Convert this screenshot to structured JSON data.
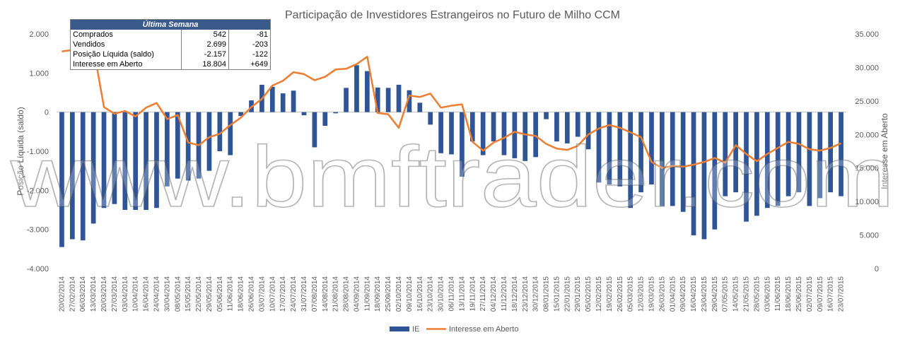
{
  "chart_data": {
    "type": "bar",
    "title": "Participação de Investidores Estrangeiros no Futuro de Milho CCM",
    "ylabel": "Posição Líquida (saldo)",
    "y2label": "Interesse em Aberto",
    "ylim": [
      -4000,
      2000
    ],
    "y2lim": [
      0,
      35000
    ],
    "y_ticks": [
      "2.000",
      "1.000",
      "0",
      "-1.000",
      "-2.000",
      "-3.000",
      "-4.000"
    ],
    "y2_ticks": [
      "35.000",
      "30.000",
      "25.000",
      "20.000",
      "15.000",
      "10.000",
      "5.000",
      "0"
    ],
    "categories": [
      "20/02/2014",
      "27/02/2014",
      "06/03/2014",
      "13/03/2014",
      "20/03/2014",
      "27/03/2014",
      "03/04/2014",
      "10/04/2014",
      "16/04/2014",
      "24/04/2014",
      "30/04/2014",
      "08/05/2014",
      "15/05/2014",
      "22/05/2014",
      "29/05/2014",
      "05/06/2014",
      "11/06/2014",
      "18/06/2014",
      "26/06/2014",
      "03/07/2014",
      "10/07/2014",
      "17/07/2014",
      "24/07/2014",
      "31/07/2014",
      "07/08/2014",
      "14/08/2014",
      "21/08/2014",
      "28/08/2014",
      "04/09/2014",
      "11/09/2014",
      "18/09/2014",
      "25/09/2014",
      "02/10/2014",
      "09/10/2014",
      "16/10/2014",
      "23/10/2014",
      "30/10/2014",
      "06/11/2014",
      "13/11/2014",
      "19/11/2014",
      "27/11/2014",
      "04/12/2014",
      "11/12/2014",
      "18/12/2014",
      "23/12/2014",
      "30/12/2014",
      "08/01/2015",
      "15/01/2015",
      "22/01/2015",
      "29/01/2015",
      "05/02/2015",
      "12/02/2015",
      "19/02/2015",
      "26/02/2015",
      "05/03/2015",
      "12/03/2015",
      "19/03/2015",
      "26/03/2015",
      "01/04/2015",
      "09/04/2015",
      "16/04/2015",
      "23/04/2015",
      "29/04/2015",
      "07/05/2015",
      "14/05/2015",
      "21/05/2015",
      "28/05/2015",
      "03/06/2015",
      "11/06/2015",
      "18/06/2015",
      "25/06/2015",
      "02/07/2015",
      "09/07/2015",
      "16/07/2015",
      "23/07/2015"
    ],
    "series": [
      {
        "name": "IE",
        "axis": "left",
        "color": "#2f5597",
        "values": [
          -3450,
          -3250,
          -3280,
          -2850,
          -2450,
          -2350,
          -2500,
          -2500,
          -2500,
          -2450,
          -1900,
          -1700,
          -1750,
          -1700,
          -1500,
          -1000,
          -1100,
          -100,
          300,
          700,
          650,
          480,
          550,
          -80,
          -900,
          -350,
          -30,
          620,
          1200,
          1050,
          630,
          620,
          700,
          560,
          240,
          -320,
          -1050,
          -1080,
          -1650,
          -750,
          -1100,
          -750,
          -1100,
          -1180,
          -1250,
          -1150,
          -180,
          -750,
          -800,
          -630,
          -950,
          -1800,
          -1850,
          -1900,
          -2450,
          -2050,
          -1850,
          -2400,
          -2400,
          -2550,
          -3150,
          -3250,
          -3000,
          -2150,
          -2050,
          -2800,
          -2650,
          -2450,
          -2400,
          -2150,
          -2050,
          -2400,
          -2200,
          -2050,
          -2150
        ]
      },
      {
        "name": "Interesse em Aberto",
        "axis": "right",
        "type": "line",
        "color": "#ed7d31",
        "values": [
          32400,
          32600,
          32800,
          33000,
          24100,
          23100,
          23500,
          22700,
          24000,
          24700,
          22300,
          22900,
          18800,
          18400,
          19600,
          20100,
          21400,
          22500,
          24100,
          25300,
          27300,
          28000,
          29300,
          29000,
          28100,
          28600,
          29700,
          29800,
          30500,
          31600,
          23200,
          23000,
          21000,
          25800,
          25600,
          26100,
          24000,
          24300,
          24500,
          18900,
          17600,
          18800,
          19500,
          20400,
          20000,
          19800,
          18600,
          17900,
          17700,
          18300,
          20000,
          20900,
          21400,
          21000,
          20300,
          19600,
          15900,
          15000,
          15300,
          15200,
          15500,
          15900,
          16500,
          15800,
          18400,
          17100,
          16000,
          17100,
          18000,
          18900,
          18600,
          17800,
          17600,
          18000,
          18700
        ]
      }
    ],
    "legend": {
      "position": "bottom",
      "items": [
        "IE",
        "Interesse em Aberto"
      ]
    },
    "grid": false
  },
  "summary": {
    "header": "Última Semana",
    "rows": [
      {
        "label": "Comprados",
        "v1": "542",
        "v2": "-81"
      },
      {
        "label": "Vendidos",
        "v1": "2.699",
        "v2": "-203"
      },
      {
        "label": "Posição Líquida (saldo)",
        "v1": "-2.157",
        "v2": "-122"
      },
      {
        "label": "Interesse em Aberto",
        "v1": "18.804",
        "v2": "+649"
      }
    ]
  },
  "watermark": "www.bmftrader.com"
}
